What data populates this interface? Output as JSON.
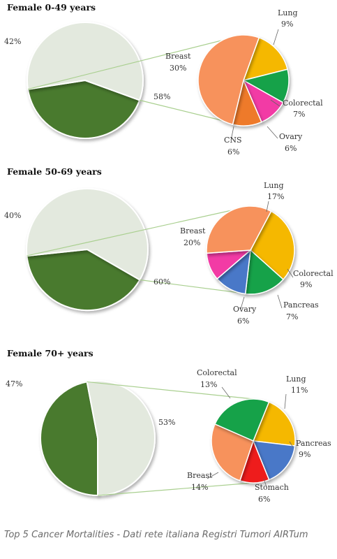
{
  "caption": "Top 5 Cancer Mortalities - Dati rete italiana Registri Tumori AIRTum",
  "colors": {
    "dark_green": "#4a7a2e",
    "light_grey": "#e3e9de",
    "Lung": "#f5b800",
    "Colorectal": "#12a24a",
    "Ovary": "#f23aa5",
    "CNS": "#ee7a2a",
    "Breast": "#f7925c",
    "Pancreas": "#4a78c8",
    "Stomach": "#ee1c1c",
    "connector": "#a9cf8f"
  },
  "chart_data": [
    {
      "type": "pie",
      "title": "Female 0-49 years",
      "main": [
        {
          "label": "42%",
          "value": 42
        },
        {
          "label": "58%",
          "value": 58
        }
      ],
      "detail": [
        {
          "name": "Lung",
          "value": 9,
          "label": "9%"
        },
        {
          "name": "Colorectal",
          "value": 7,
          "label": "7%"
        },
        {
          "name": "Ovary",
          "value": 6,
          "label": "6%"
        },
        {
          "name": "CNS",
          "value": 6,
          "label": "6%"
        },
        {
          "name": "Breast",
          "value": 30,
          "label": "30%"
        }
      ]
    },
    {
      "type": "pie",
      "title": "Female 50-69 years",
      "main": [
        {
          "label": "40%",
          "value": 40
        },
        {
          "label": "60%",
          "value": 60
        }
      ],
      "detail": [
        {
          "name": "Lung",
          "value": 17,
          "label": "17%"
        },
        {
          "name": "Colorectal",
          "value": 9,
          "label": "9%"
        },
        {
          "name": "Pancreas",
          "value": 7,
          "label": "7%"
        },
        {
          "name": "Ovary",
          "value": 6,
          "label": "6%"
        },
        {
          "name": "Breast",
          "value": 20,
          "label": "20%"
        }
      ]
    },
    {
      "type": "pie",
      "title": "Female 70+ years",
      "main": [
        {
          "label": "47%",
          "value": 47
        },
        {
          "label": "53%",
          "value": 53
        }
      ],
      "detail": [
        {
          "name": "Lung",
          "value": 11,
          "label": "11%"
        },
        {
          "name": "Pancreas",
          "value": 9,
          "label": "9%"
        },
        {
          "name": "Stomach",
          "value": 6,
          "label": "6%"
        },
        {
          "name": "Breast",
          "value": 14,
          "label": "14%"
        },
        {
          "name": "Colorectal",
          "value": 13,
          "label": "13%"
        }
      ]
    }
  ]
}
